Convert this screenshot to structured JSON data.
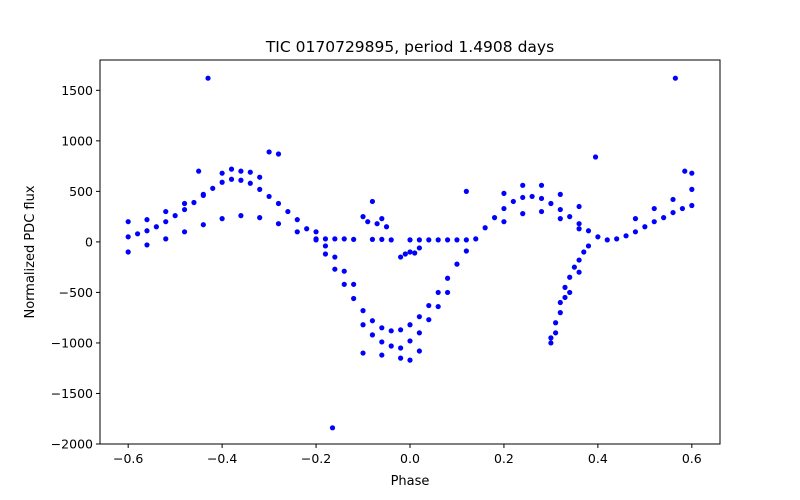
{
  "chart_data": {
    "type": "scatter",
    "title": "TIC 0170729895, period 1.4908 days",
    "xlabel": "Phase",
    "ylabel": "Normalized PDC flux",
    "xlim": [
      -0.66,
      0.66
    ],
    "ylim": [
      -2000,
      1800
    ],
    "xticks": [
      -0.6,
      -0.4,
      -0.2,
      0.0,
      0.2,
      0.4,
      0.6
    ],
    "xtick_labels": [
      "−0.6",
      "−0.4",
      "−0.2",
      "0.0",
      "0.2",
      "0.4",
      "0.6"
    ],
    "yticks": [
      -2000,
      -1500,
      -1000,
      -500,
      0,
      500,
      1000,
      1500
    ],
    "ytick_labels": [
      "−2000",
      "−1500",
      "−1000",
      "−500",
      "0",
      "500",
      "1000",
      "1500"
    ],
    "grid": false,
    "marker_color": "#0000ff",
    "series": [
      {
        "name": "flux",
        "points": [
          [
            -0.6,
            50
          ],
          [
            -0.58,
            80
          ],
          [
            -0.56,
            110
          ],
          [
            -0.54,
            150
          ],
          [
            -0.52,
            200
          ],
          [
            -0.5,
            260
          ],
          [
            -0.48,
            320
          ],
          [
            -0.46,
            390
          ],
          [
            -0.44,
            460
          ],
          [
            -0.42,
            530
          ],
          [
            -0.4,
            590
          ],
          [
            -0.38,
            620
          ],
          [
            -0.36,
            610
          ],
          [
            -0.34,
            580
          ],
          [
            -0.32,
            520
          ],
          [
            -0.3,
            450
          ],
          [
            -0.28,
            380
          ],
          [
            -0.26,
            300
          ],
          [
            -0.24,
            220
          ],
          [
            -0.22,
            130
          ],
          [
            -0.2,
            20
          ],
          [
            -0.18,
            -120
          ],
          [
            -0.16,
            -270
          ],
          [
            -0.14,
            -420
          ],
          [
            -0.12,
            -560
          ],
          [
            -0.1,
            -680
          ],
          [
            -0.08,
            -780
          ],
          [
            -0.06,
            -850
          ],
          [
            -0.04,
            -880
          ],
          [
            -0.02,
            -870
          ],
          [
            0.0,
            -820
          ],
          [
            0.02,
            -740
          ],
          [
            0.04,
            -630
          ],
          [
            0.06,
            -500
          ],
          [
            0.08,
            -360
          ],
          [
            0.1,
            -220
          ],
          [
            0.12,
            -90
          ],
          [
            0.14,
            30
          ],
          [
            0.16,
            140
          ],
          [
            0.18,
            240
          ],
          [
            0.2,
            330
          ],
          [
            0.22,
            400
          ],
          [
            0.24,
            440
          ],
          [
            0.26,
            450
          ],
          [
            0.28,
            430
          ],
          [
            0.3,
            380
          ],
          [
            0.32,
            320
          ],
          [
            0.34,
            250
          ],
          [
            0.36,
            180
          ],
          [
            0.38,
            110
          ],
          [
            0.4,
            50
          ],
          [
            0.42,
            20
          ],
          [
            0.44,
            30
          ],
          [
            0.46,
            60
          ],
          [
            0.48,
            100
          ],
          [
            0.5,
            150
          ],
          [
            0.52,
            200
          ],
          [
            0.54,
            240
          ],
          [
            0.56,
            290
          ],
          [
            0.58,
            330
          ],
          [
            0.6,
            360
          ],
          [
            -0.6,
            -100
          ],
          [
            -0.56,
            -30
          ],
          [
            -0.52,
            30
          ],
          [
            -0.48,
            100
          ],
          [
            -0.44,
            170
          ],
          [
            -0.4,
            230
          ],
          [
            -0.36,
            260
          ],
          [
            -0.32,
            240
          ],
          [
            -0.28,
            180
          ],
          [
            -0.24,
            100
          ],
          [
            -0.6,
            200
          ],
          [
            -0.56,
            220
          ],
          [
            -0.52,
            300
          ],
          [
            -0.48,
            380
          ],
          [
            -0.44,
            470
          ],
          [
            -0.4,
            680
          ],
          [
            -0.38,
            720
          ],
          [
            -0.36,
            700
          ],
          [
            -0.34,
            690
          ],
          [
            -0.32,
            640
          ],
          [
            0.2,
            480
          ],
          [
            0.24,
            560
          ],
          [
            0.28,
            560
          ],
          [
            0.32,
            470
          ],
          [
            0.36,
            350
          ],
          [
            0.48,
            230
          ],
          [
            0.52,
            330
          ],
          [
            0.56,
            420
          ],
          [
            0.6,
            520
          ],
          [
            0.6,
            680
          ],
          [
            0.2,
            200
          ],
          [
            0.24,
            280
          ],
          [
            0.28,
            300
          ],
          [
            0.32,
            230
          ],
          [
            0.36,
            130
          ],
          [
            -0.2,
            100
          ],
          [
            -0.18,
            -40
          ],
          [
            -0.16,
            -150
          ],
          [
            -0.14,
            -290
          ],
          [
            -0.12,
            -420
          ],
          [
            -0.1,
            -820
          ],
          [
            -0.08,
            -920
          ],
          [
            -0.06,
            -990
          ],
          [
            -0.04,
            -1030
          ],
          [
            -0.02,
            -1050
          ],
          [
            0.0,
            -980
          ],
          [
            0.02,
            -900
          ],
          [
            0.04,
            -770
          ],
          [
            0.06,
            -640
          ],
          [
            0.08,
            -500
          ],
          [
            -0.2,
            30
          ],
          [
            -0.16,
            30
          ],
          [
            -0.12,
            25
          ],
          [
            -0.08,
            25
          ],
          [
            -0.04,
            20
          ],
          [
            0.0,
            20
          ],
          [
            0.04,
            20
          ],
          [
            0.08,
            20
          ],
          [
            0.12,
            20
          ],
          [
            -0.14,
            30
          ],
          [
            -0.06,
            25
          ],
          [
            0.02,
            20
          ],
          [
            0.06,
            20
          ],
          [
            0.1,
            20
          ],
          [
            -0.18,
            30
          ],
          [
            -0.09,
            200
          ],
          [
            -0.07,
            180
          ],
          [
            -0.05,
            150
          ],
          [
            -0.1,
            250
          ],
          [
            -0.06,
            230
          ],
          [
            -0.01,
            -120
          ],
          [
            0.01,
            -110
          ],
          [
            -0.02,
            -150
          ],
          [
            0.0,
            -100
          ],
          [
            0.02,
            -60
          ],
          [
            0.3,
            -950
          ],
          [
            0.31,
            -800
          ],
          [
            0.32,
            -600
          ],
          [
            0.33,
            -450
          ],
          [
            0.34,
            -350
          ],
          [
            0.35,
            -250
          ],
          [
            0.36,
            -180
          ],
          [
            0.37,
            -100
          ],
          [
            0.38,
            -40
          ],
          [
            0.3,
            -1000
          ],
          [
            0.32,
            -700
          ],
          [
            0.34,
            -500
          ],
          [
            0.36,
            -300
          ],
          [
            0.31,
            -900
          ],
          [
            0.33,
            -550
          ],
          [
            -0.1,
            -1100
          ],
          [
            -0.02,
            -1150
          ],
          [
            0.0,
            -1170
          ],
          [
            -0.06,
            -1120
          ],
          [
            0.02,
            -1080
          ],
          [
            -0.43,
            1620
          ],
          [
            0.565,
            1620
          ],
          [
            -0.165,
            -1840
          ],
          [
            -0.3,
            890
          ],
          [
            -0.28,
            870
          ],
          [
            0.395,
            840
          ],
          [
            0.12,
            500
          ],
          [
            0.585,
            700
          ],
          [
            -0.45,
            700
          ],
          [
            -0.08,
            400
          ]
        ]
      }
    ]
  }
}
